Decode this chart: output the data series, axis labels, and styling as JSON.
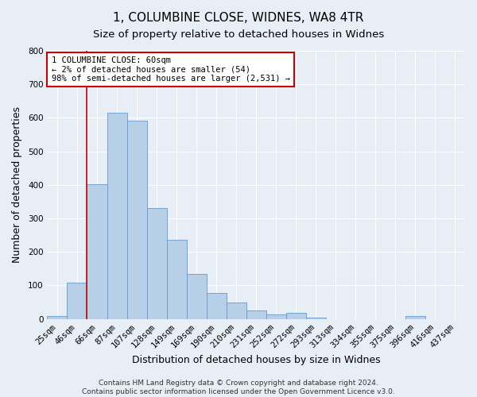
{
  "title": "1, COLUMBINE CLOSE, WIDNES, WA8 4TR",
  "subtitle": "Size of property relative to detached houses in Widnes",
  "xlabel": "Distribution of detached houses by size in Widnes",
  "ylabel": "Number of detached properties",
  "bin_labels": [
    "25sqm",
    "46sqm",
    "66sqm",
    "87sqm",
    "107sqm",
    "128sqm",
    "149sqm",
    "169sqm",
    "190sqm",
    "210sqm",
    "231sqm",
    "252sqm",
    "272sqm",
    "293sqm",
    "313sqm",
    "334sqm",
    "355sqm",
    "375sqm",
    "396sqm",
    "416sqm",
    "437sqm"
  ],
  "bar_values": [
    8,
    107,
    403,
    615,
    592,
    330,
    237,
    133,
    77,
    50,
    25,
    14,
    17,
    4,
    0,
    0,
    0,
    0,
    8,
    0,
    0
  ],
  "bar_color": "#b8cfe8",
  "bar_edge_color": "#6699cc",
  "vline_position": 1.5,
  "vline_color": "#cc0000",
  "ylim": [
    0,
    800
  ],
  "yticks": [
    0,
    100,
    200,
    300,
    400,
    500,
    600,
    700,
    800
  ],
  "annotation_line1": "1 COLUMBINE CLOSE: 60sqm",
  "annotation_line2": "← 2% of detached houses are smaller (54)",
  "annotation_line3": "98% of semi-detached houses are larger (2,531) →",
  "footer1": "Contains HM Land Registry data © Crown copyright and database right 2024.",
  "footer2": "Contains public sector information licensed under the Open Government Licence v3.0.",
  "background_color": "#e8eef6",
  "plot_bg_color": "#e8eef6",
  "grid_color": "#ffffff",
  "title_fontsize": 11,
  "subtitle_fontsize": 9.5,
  "label_fontsize": 9,
  "tick_fontsize": 7.5,
  "footer_fontsize": 6.5,
  "annot_fontsize": 7.5
}
